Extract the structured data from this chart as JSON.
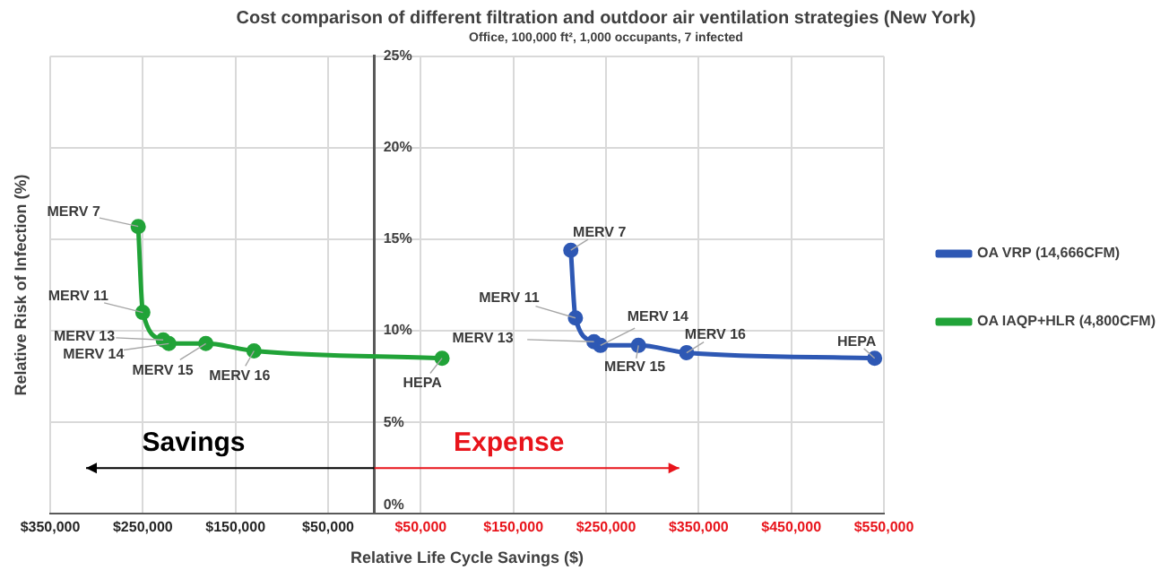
{
  "chart_data": {
    "type": "line",
    "title": "Cost comparison of different filtration and outdoor air ventilation strategies (New York)",
    "subtitle": "Office, 100,000 ft², 1,000 occupants, 7 infected",
    "xlabel": "Relative Life Cycle Savings ($)",
    "ylabel": "Relative Risk of Infection (%)",
    "series": [
      {
        "name": "OA VRP (14,666CFM)",
        "color": "#2e58b4",
        "x": [
          212000,
          217000,
          237000,
          244000,
          285000,
          337000,
          540000
        ],
        "values": [
          14.4,
          10.7,
          9.4,
          9.2,
          9.2,
          8.8,
          8.5
        ]
      },
      {
        "name": "OA IAQP+HLR (4,800CFM)",
        "color": "#21a338",
        "x": [
          -255000,
          -250000,
          -228000,
          -222000,
          -182000,
          -130000,
          73000
        ],
        "values": [
          15.7,
          11.0,
          9.5,
          9.3,
          9.3,
          8.9,
          8.5
        ]
      }
    ],
    "xlim": [
      -350000,
      550000
    ],
    "xticks": [
      {
        "value": -350000,
        "label": "$350,000"
      },
      {
        "value": -250000,
        "label": "$250,000"
      },
      {
        "value": -150000,
        "label": "$150,000"
      },
      {
        "value": -50000,
        "label": "$50,000"
      },
      {
        "value": 50000,
        "label": "$50,000"
      },
      {
        "value": 150000,
        "label": "$150,000"
      },
      {
        "value": 250000,
        "label": "$250,000"
      },
      {
        "value": 350000,
        "label": "$350,000"
      },
      {
        "value": 450000,
        "label": "$450,000"
      },
      {
        "value": 550000,
        "label": "$550,000"
      }
    ],
    "ylim": [
      0,
      25
    ],
    "yticks": [
      {
        "value": 0,
        "label": "0%"
      },
      {
        "value": 5,
        "label": "5%"
      },
      {
        "value": 10,
        "label": "10%"
      },
      {
        "value": 15,
        "label": "15%"
      },
      {
        "value": 20,
        "label": "20%"
      },
      {
        "value": 25,
        "label": "25%"
      }
    ],
    "grid": true,
    "legend": "right",
    "marker": "circle",
    "line_style": "solid",
    "annotations": [
      {
        "text": "MERV 7",
        "x": 212000,
        "y": 14.4
      },
      {
        "text": "MERV 11",
        "x": 217000,
        "y": 10.7
      },
      {
        "text": "MERV 13",
        "x": 237000,
        "y": 9.4
      },
      {
        "text": "MERV 14",
        "x": 244000,
        "y": 9.2
      },
      {
        "text": "MERV 15",
        "x": 285000,
        "y": 9.2
      },
      {
        "text": "MERV 16",
        "x": 337000,
        "y": 8.8
      },
      {
        "text": "HEPA",
        "x": 540000,
        "y": 8.5
      },
      {
        "text": "MERV 7",
        "x": -255000,
        "y": 15.7
      },
      {
        "text": "MERV 11",
        "x": -250000,
        "y": 11.0
      },
      {
        "text": "MERV 13",
        "x": -228000,
        "y": 9.5
      },
      {
        "text": "MERV 14",
        "x": -222000,
        "y": 9.3
      },
      {
        "text": "MERV 15",
        "x": -182000,
        "y": 9.3
      },
      {
        "text": "MERV 16",
        "x": -130000,
        "y": 8.9
      },
      {
        "text": "HEPA",
        "x": 73000,
        "y": 8.5
      },
      "Savings",
      "Expense"
    ]
  }
}
